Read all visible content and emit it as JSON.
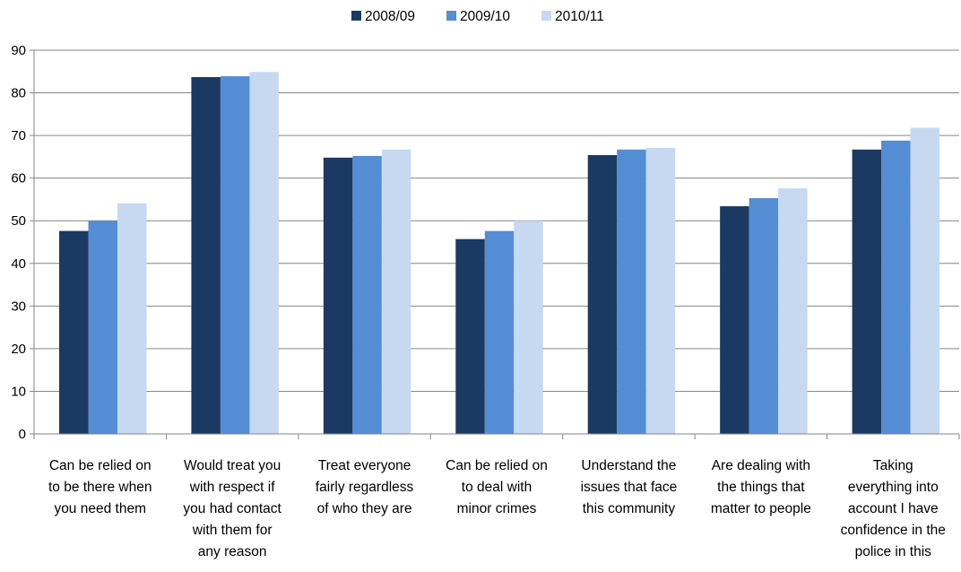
{
  "chart_data": {
    "type": "bar",
    "title": "",
    "xlabel": "",
    "ylabel": "",
    "ylim": [
      0,
      90
    ],
    "yticks": [
      0,
      10,
      20,
      30,
      40,
      50,
      60,
      70,
      80,
      90
    ],
    "grid": true,
    "legend_position": "top",
    "categories": [
      [
        "Can be relied on",
        "to be there when",
        "you need them"
      ],
      [
        "Would treat you",
        "with respect if",
        "you had contact",
        "with them for",
        "any reason"
      ],
      [
        "Treat everyone",
        "fairly regardless",
        "of who they are"
      ],
      [
        "Can be relied on",
        "to deal with",
        "minor crimes"
      ],
      [
        "Understand the",
        "issues that face",
        "this community"
      ],
      [
        "Are dealing with",
        "the things that",
        "matter to people"
      ],
      [
        "Taking",
        "everything into",
        "account I have",
        "confidence in the",
        "police in this"
      ]
    ],
    "series": [
      {
        "name": "2008/09",
        "color": "#1b3a63",
        "values": [
          47.6,
          83.7,
          64.8,
          45.7,
          65.4,
          53.4,
          66.7
        ]
      },
      {
        "name": "2009/10",
        "color": "#548dd4",
        "values": [
          50.0,
          83.9,
          65.2,
          47.6,
          66.7,
          55.3,
          68.8
        ]
      },
      {
        "name": "2010/11",
        "color": "#c6d9f1",
        "values": [
          54.1,
          84.9,
          66.7,
          50.0,
          67.1,
          57.6,
          71.8
        ]
      }
    ]
  }
}
